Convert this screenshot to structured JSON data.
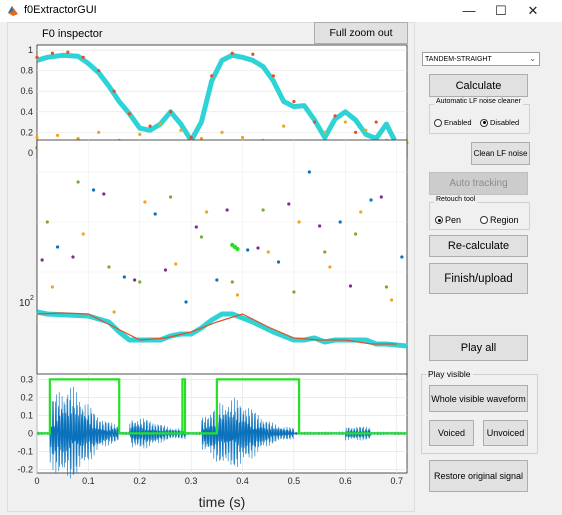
{
  "window": {
    "title": "f0ExtractorGUI",
    "minimize_glyph": "—",
    "maximize_glyph": "☐",
    "close_glyph": "✕"
  },
  "inspector": {
    "title": "F0 inspector",
    "full_zoom_out_label": "Full zoom out"
  },
  "controls": {
    "method_selected": "TANDEM-STRAIGHT",
    "calculate_label": "Calculate",
    "lf_panel_title": "Automatic LF noise cleaner",
    "enabled_label": "Enabled",
    "disabled_label": "Disabled",
    "lf_selected": "Disabled",
    "clean_lf_label": "Clean LF noise",
    "auto_tracking_label": "Auto tracking",
    "retouch_title": "Retouch tool",
    "pen_label": "Pen",
    "region_label": "Region",
    "retouch_selected": "Pen",
    "recalculate_label": "Re-calculate",
    "finish_label": "Finish/upload",
    "play_all_label": "Play all",
    "play_visible_title": "Play visible",
    "whole_visible_label": "Whole visible waveform",
    "voiced_label": "Voiced",
    "unvoiced_label": "Unvoiced",
    "restore_label": "Restore original signal"
  },
  "colors": {
    "cyan": "#2ed3d6",
    "red": "#e0502a",
    "orange": "#f2a51c",
    "purple": "#7e2f8e",
    "green": "#77ac30",
    "blue": "#0a72bd",
    "bright_green": "#26e026",
    "wave": "#0a72bd"
  },
  "chart_data": [
    {
      "type": "line",
      "title": "",
      "yticks": [
        "0",
        "0.2",
        "0.4",
        "0.6",
        "0.8",
        "1"
      ],
      "ylim": [
        -0.05,
        1.05
      ],
      "xlim": [
        0,
        0.72
      ],
      "series": [
        {
          "color": "cyan",
          "x": [
            0.0,
            0.02,
            0.05,
            0.08,
            0.1,
            0.12,
            0.14,
            0.16,
            0.18,
            0.2,
            0.22,
            0.24,
            0.26,
            0.28,
            0.3,
            0.32,
            0.34,
            0.36,
            0.38,
            0.4,
            0.42,
            0.44,
            0.46,
            0.48,
            0.5,
            0.52,
            0.54,
            0.56,
            0.58,
            0.6,
            0.62,
            0.64,
            0.66,
            0.68,
            0.7,
            0.72
          ],
          "y": [
            0.9,
            0.93,
            0.95,
            0.94,
            0.87,
            0.78,
            0.65,
            0.5,
            0.38,
            0.24,
            0.22,
            0.28,
            0.4,
            0.28,
            0.12,
            0.3,
            0.7,
            0.9,
            0.95,
            0.93,
            0.9,
            0.84,
            0.7,
            0.5,
            0.45,
            0.46,
            0.32,
            0.15,
            0.33,
            0.4,
            0.32,
            0.18,
            0.14,
            0.28,
            0.08,
            0.05
          ]
        },
        {
          "color": "red",
          "x": [
            0.0,
            0.03,
            0.06,
            0.09,
            0.12,
            0.15,
            0.18,
            0.22,
            0.26,
            0.3,
            0.34,
            0.38,
            0.42,
            0.46,
            0.5,
            0.54,
            0.58,
            0.62,
            0.66,
            0.7
          ],
          "y": [
            0.93,
            0.97,
            0.98,
            0.93,
            0.8,
            0.6,
            0.38,
            0.26,
            0.4,
            0.15,
            0.75,
            0.97,
            0.96,
            0.75,
            0.5,
            0.3,
            0.36,
            0.2,
            0.3,
            0.05
          ]
        },
        {
          "color": "orange",
          "x": [
            0.0,
            0.04,
            0.08,
            0.12,
            0.16,
            0.2,
            0.24,
            0.28,
            0.32,
            0.36,
            0.4,
            0.44,
            0.48,
            0.52,
            0.56,
            0.6,
            0.64,
            0.68,
            0.72
          ],
          "y": [
            0.15,
            0.17,
            0.14,
            0.2,
            0.12,
            0.18,
            0.28,
            0.22,
            0.14,
            0.2,
            0.15,
            0.12,
            0.26,
            0.1,
            0.2,
            0.3,
            0.22,
            0.12,
            0.1
          ]
        },
        {
          "color": "green",
          "x": [
            0.0,
            0.05,
            0.1,
            0.15,
            0.2,
            0.25,
            0.3,
            0.35,
            0.4,
            0.45,
            0.5,
            0.55,
            0.6,
            0.65,
            0.7
          ],
          "y": [
            0.05,
            0.04,
            0.06,
            0.03,
            0.05,
            0.02,
            0.04,
            0.06,
            0.05,
            0.03,
            0.02,
            0.05,
            0.04,
            0.03,
            0.05
          ]
        }
      ]
    },
    {
      "type": "scatter",
      "title": "",
      "ytick_label": "10",
      "ytick_exponent": "2",
      "xlim": [
        0,
        0.72
      ],
      "series": [
        {
          "color": "cyan",
          "x": [
            0.0,
            0.02,
            0.06,
            0.1,
            0.14,
            0.16,
            0.18,
            0.2,
            0.22,
            0.24,
            0.26,
            0.28,
            0.3,
            0.32,
            0.34,
            0.36,
            0.38,
            0.4,
            0.42,
            0.44,
            0.46,
            0.48,
            0.5,
            0.52,
            0.54,
            0.56,
            0.58,
            0.6,
            0.62,
            0.64,
            0.66,
            0.68,
            0.7,
            0.72
          ],
          "y": [
            290,
            292,
            293,
            294,
            300,
            310,
            318,
            318,
            318,
            318,
            314,
            312,
            312,
            306,
            298,
            292,
            292,
            296,
            300,
            305,
            310,
            314,
            318,
            318,
            316,
            320,
            318,
            318,
            318,
            318,
            322,
            322,
            323,
            324
          ]
        },
        {
          "color": "red",
          "x": [
            0.0,
            0.05,
            0.1,
            0.15,
            0.2,
            0.25,
            0.3,
            0.35,
            0.4,
            0.45,
            0.5,
            0.55,
            0.6,
            0.65,
            0.7
          ],
          "y": [
            292,
            291,
            292,
            305,
            318,
            316,
            310,
            300,
            292,
            305,
            316,
            318,
            318,
            322,
            322
          ]
        },
        {
          "color": "purple",
          "x": [
            0.01,
            0.07,
            0.13,
            0.19,
            0.25,
            0.31,
            0.37,
            0.43,
            0.49,
            0.55,
            0.61,
            0.67
          ],
          "y": [
            238,
            235,
            172,
            258,
            248,
            205,
            188,
            226,
            182,
            204,
            264,
            175
          ]
        },
        {
          "color": "orange",
          "x": [
            0.03,
            0.09,
            0.15,
            0.21,
            0.27,
            0.33,
            0.39,
            0.45,
            0.51,
            0.57,
            0.63,
            0.69
          ],
          "y": [
            265,
            212,
            290,
            180,
            242,
            190,
            273,
            230,
            200,
            245,
            190,
            278
          ]
        },
        {
          "color": "green",
          "x": [
            0.02,
            0.08,
            0.14,
            0.2,
            0.26,
            0.32,
            0.38,
            0.44,
            0.5,
            0.56,
            0.62,
            0.68
          ],
          "y": [
            200,
            160,
            245,
            260,
            175,
            215,
            260,
            188,
            270,
            230,
            212,
            265
          ]
        },
        {
          "color": "blue",
          "x": [
            0.04,
            0.11,
            0.17,
            0.23,
            0.29,
            0.35,
            0.41,
            0.47,
            0.53,
            0.59,
            0.65,
            0.71
          ],
          "y": [
            225,
            168,
            255,
            192,
            280,
            258,
            228,
            240,
            150,
            200,
            178,
            235
          ]
        },
        {
          "color": "bright_green",
          "x": [
            0.38,
            0.385,
            0.39
          ],
          "y": [
            223,
            225,
            227
          ]
        }
      ]
    },
    {
      "type": "line",
      "title": "",
      "xlabel": "time (s)",
      "xticks": [
        "0",
        "0.1",
        "0.2",
        "0.3",
        "0.4",
        "0.5",
        "0.6",
        "0.7"
      ],
      "yticks": [
        "-0.2",
        "-0.1",
        "0",
        "0.1",
        "0.2",
        "0.3"
      ],
      "xlim": [
        0,
        0.72
      ],
      "ylim": [
        -0.22,
        0.33
      ],
      "voiced_segments": [
        [
          0.025,
          0.16
        ],
        [
          0.283,
          0.288
        ],
        [
          0.35,
          0.51
        ]
      ],
      "voiced_level": 0.3,
      "unvoiced_level": 0.0
    }
  ]
}
